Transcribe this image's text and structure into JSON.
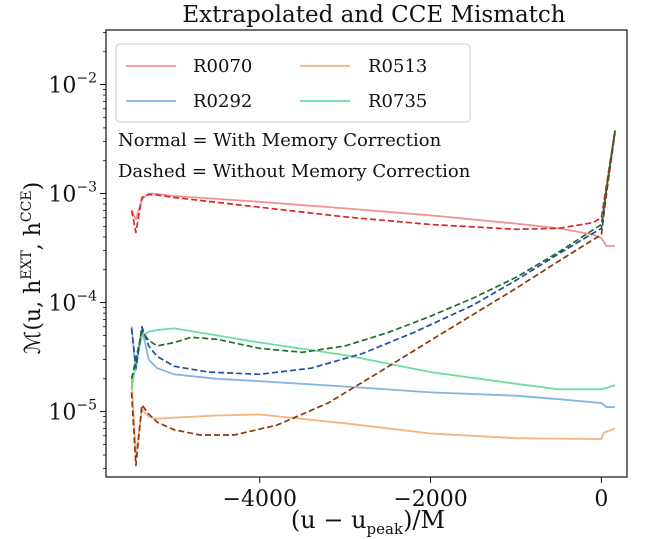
{
  "chart_data": {
    "type": "line",
    "title": "Extrapolated and CCE Mismatch",
    "ylabel_parts": {
      "main": "ℳ(u, h",
      "sup1": "EXT",
      "mid": ", h",
      "sup2": "CCE",
      "end": ")"
    },
    "xlabel_parts": {
      "main": "(u − u",
      "sub": "peak",
      "end": ")/M"
    },
    "xlim": [
      -5800,
      300
    ],
    "ylim_log10": [
      -5.6,
      -1.5
    ],
    "yscale": "log",
    "x_ticks": [
      -4000,
      -2000,
      0
    ],
    "x_tick_labels": [
      "−4000",
      "−2000",
      "0"
    ],
    "y_ticks_log10": [
      -5,
      -4,
      -3,
      -2
    ],
    "y_tick_labels": [
      {
        "base": "10",
        "exp": "−5"
      },
      {
        "base": "10",
        "exp": "−4"
      },
      {
        "base": "10",
        "exp": "−3"
      },
      {
        "base": "10",
        "exp": "−2"
      }
    ],
    "legend_position": "top-left",
    "annotations": [
      "Normal = With Memory Correction",
      "Dashed = Without Memory Correction"
    ],
    "series": [
      {
        "name": "R0070",
        "color": "#f08080",
        "dash": false,
        "x": [
          -5500,
          -5450,
          -5380,
          -5300,
          -5200,
          -5000,
          -4000,
          -3000,
          -2000,
          -1000,
          -500,
          -100,
          0,
          60,
          160
        ],
        "y": [
          0.0007,
          0.00058,
          0.00088,
          0.001,
          0.00099,
          0.00095,
          0.00084,
          0.00073,
          0.00063,
          0.00053,
          0.00048,
          0.00042,
          0.00039,
          0.00033,
          0.00033
        ]
      },
      {
        "name": "R0513",
        "color": "#f4a66a",
        "dash": false,
        "x": [
          -5500,
          -5450,
          -5380,
          -5300,
          -5200,
          -5000,
          -4500,
          -4000,
          -3000,
          -2000,
          -1000,
          -100,
          0,
          30,
          160
        ],
        "y": [
          2e-05,
          4e-06,
          1.05e-05,
          9e-06,
          8.6e-06,
          8.8e-06,
          9.2e-06,
          9.4e-06,
          7.8e-06,
          6.3e-06,
          5.7e-06,
          5.6e-06,
          5.6e-06,
          6.4e-06,
          7e-06
        ]
      },
      {
        "name": "R0292",
        "color": "#6fa8dc",
        "dash": false,
        "x": [
          -5500,
          -5450,
          -5380,
          -5300,
          -5200,
          -5000,
          -4500,
          -4000,
          -3000,
          -2000,
          -1000,
          -500,
          0,
          60,
          160
        ],
        "y": [
          6e-05,
          2.4e-05,
          5.8e-05,
          3e-05,
          2.5e-05,
          2.2e-05,
          2e-05,
          1.9e-05,
          1.7e-05,
          1.5e-05,
          1.4e-05,
          1.3e-05,
          1.2e-05,
          1.1e-05,
          1.1e-05
        ]
      },
      {
        "name": "R0735",
        "color": "#55d88f",
        "dash": false,
        "x": [
          -5500,
          -5450,
          -5380,
          -5300,
          -5200,
          -5000,
          -4500,
          -4000,
          -3000,
          -2000,
          -1000,
          -500,
          0,
          60,
          160
        ],
        "y": [
          1.6e-05,
          2.8e-05,
          5e-05,
          5.4e-05,
          5.6e-05,
          5.8e-05,
          5e-05,
          4.3e-05,
          3.3e-05,
          2.3e-05,
          1.8e-05,
          1.6e-05,
          1.6e-05,
          1.65e-05,
          1.75e-05
        ]
      },
      {
        "color": "#d62728",
        "dash": true,
        "x": [
          -5500,
          -5450,
          -5380,
          -5300,
          -5200,
          -5000,
          -4000,
          -3000,
          -2000,
          -1000,
          -500,
          -100,
          0,
          60,
          160
        ],
        "y": [
          0.0007,
          0.00044,
          0.00092,
          0.00098,
          0.00097,
          0.00092,
          0.00075,
          0.00061,
          0.00052,
          0.00047,
          0.00048,
          0.00054,
          0.0006,
          0.0012,
          0.0038
        ]
      },
      {
        "color": "#8b3a0f",
        "dash": true,
        "x": [
          -5500,
          -5450,
          -5380,
          -5300,
          -5200,
          -5000,
          -4700,
          -4300,
          -3800,
          -3200,
          -2600,
          -2000,
          -1000,
          -500,
          0,
          60,
          160
        ],
        "y": [
          1.5e-05,
          3.2e-06,
          1.15e-05,
          9.5e-06,
          8e-06,
          6.8e-06,
          6.1e-06,
          6.1e-06,
          7.5e-06,
          1.2e-05,
          2.3e-05,
          4.5e-05,
          0.000135,
          0.00024,
          0.00042,
          0.001,
          0.0036
        ]
      },
      {
        "color": "#1f4e9e",
        "dash": true,
        "x": [
          -5500,
          -5450,
          -5380,
          -5300,
          -5200,
          -5000,
          -4600,
          -4000,
          -3400,
          -2800,
          -2200,
          -1500,
          -1000,
          -500,
          0,
          60,
          160
        ],
        "y": [
          5.8e-05,
          2.5e-05,
          6e-05,
          4e-05,
          3.2e-05,
          2.6e-05,
          2.3e-05,
          2.2e-05,
          2.5e-05,
          3.4e-05,
          5.3e-05,
          9.5e-05,
          0.00016,
          0.00028,
          0.00048,
          0.0011,
          0.0037
        ]
      },
      {
        "color": "#1f6b2e",
        "dash": true,
        "x": [
          -5500,
          -5450,
          -5380,
          -5300,
          -5200,
          -5000,
          -4800,
          -4500,
          -4000,
          -3500,
          -3000,
          -2500,
          -2000,
          -1500,
          -1000,
          -500,
          0,
          60,
          160
        ],
        "y": [
          2e-05,
          3e-05,
          5.5e-05,
          4.5e-05,
          4e-05,
          4.3e-05,
          4.8e-05,
          4.6e-05,
          3.8e-05,
          3.5e-05,
          4e-05,
          5.3e-05,
          7.5e-05,
          0.00011,
          0.00017,
          0.00029,
          0.00052,
          0.0011,
          0.0038
        ]
      }
    ]
  }
}
